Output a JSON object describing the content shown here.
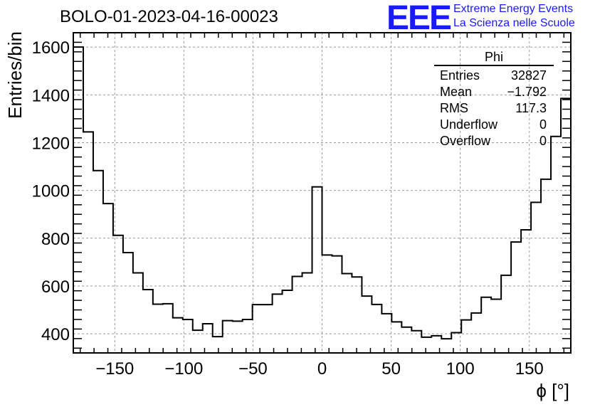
{
  "header": {
    "title": "BOLO-01-2023-04-16-00023",
    "logo_text": "EEE",
    "logo_line1": "Extreme Energy Events",
    "logo_line2": "La Scienza nelle Scuole"
  },
  "stats_box": {
    "title": "Phi",
    "rows": [
      {
        "label": "Entries",
        "value": "32827"
      },
      {
        "label": "Mean",
        "value": "−1.792"
      },
      {
        "label": "RMS",
        "value": "117.3"
      },
      {
        "label": "Underflow",
        "value": "0"
      },
      {
        "label": "Overflow",
        "value": "0"
      }
    ]
  },
  "colors": {
    "line": "#000000",
    "grid": "#999999",
    "logo": "#1a1aff"
  },
  "chart_data": {
    "type": "histogram",
    "title": "BOLO-01-2023-04-16-00023",
    "xlabel": "ϕ [°]",
    "ylabel": "Entries/bin",
    "xlim": [
      -180,
      180
    ],
    "ylim": [
      320,
      1660
    ],
    "x_ticks": [
      -150,
      -100,
      -50,
      0,
      50,
      100,
      150
    ],
    "y_ticks": [
      400,
      600,
      800,
      1000,
      1200,
      1400,
      1600
    ],
    "grid": true,
    "bin_edges_start": -180,
    "bin_width": 7.2,
    "values": [
      1600,
      1245,
      1083,
      945,
      812,
      740,
      655,
      585,
      524,
      526,
      467,
      460,
      415,
      442,
      388,
      455,
      453,
      460,
      522,
      522,
      566,
      582,
      640,
      655,
      1015,
      730,
      726,
      652,
      638,
      558,
      523,
      484,
      450,
      428,
      413,
      386,
      392,
      379,
      405,
      458,
      487,
      553,
      545,
      645,
      784,
      835,
      950,
      1047,
      1226,
      1385
    ]
  }
}
